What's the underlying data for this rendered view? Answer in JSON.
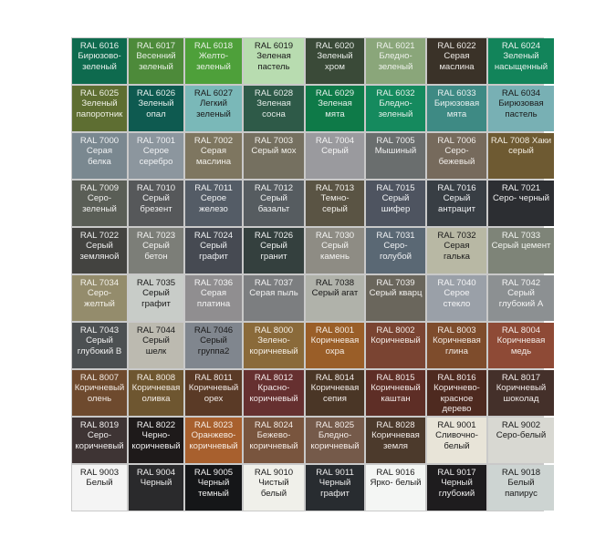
{
  "cells": [
    {
      "code": "RAL 6016",
      "name": "Бирюзово-\nзеленый",
      "color": "#0e6a4e",
      "text": "#e8f0ec"
    },
    {
      "code": "RAL 6017",
      "name": "Весенний\nзеленый",
      "color": "#4d8a3a",
      "text": "#e8f0e4"
    },
    {
      "code": "RAL 6018",
      "name": "Желто-\nзеленый",
      "color": "#4ea03a",
      "text": "#e8f0e4"
    },
    {
      "code": "RAL 6019",
      "name": "Зеленая\nпастель",
      "color": "#b8dcb0",
      "text": "#1a1a1a"
    },
    {
      "code": "RAL 6020",
      "name": "Зеленый\nхром",
      "color": "#3a4a38",
      "text": "#e8ece8"
    },
    {
      "code": "RAL 6021",
      "name": "Бледно-\nзеленый",
      "color": "#8aa67a",
      "text": "#eef2ec"
    },
    {
      "code": "RAL 6022",
      "name": "Серая\nмаслина",
      "color": "#3a3228",
      "text": "#ece8e4"
    },
    {
      "code": "RAL 6024",
      "name": "Зеленый\nнасыщенный",
      "color": "#12845a",
      "text": "#e8f0ec"
    },
    {
      "code": "RAL 6025",
      "name": "Зеленый\nпапоротник",
      "color": "#5e6e32",
      "text": "#eef0e4"
    },
    {
      "code": "RAL 6026",
      "name": "Зеленый\nопал",
      "color": "#0e5a50",
      "text": "#e4eeec"
    },
    {
      "code": "RAL 6027",
      "name": "Легкий\nзеленый",
      "color": "#7ab8b8",
      "text": "#1a1a1a"
    },
    {
      "code": "RAL 6028",
      "name": "Зеленая\nсосна",
      "color": "#2e5a48",
      "text": "#e4ece8"
    },
    {
      "code": "RAL 6029",
      "name": "Зеленая\nмята",
      "color": "#0e7a48",
      "text": "#e4f0ea"
    },
    {
      "code": "RAL 6032",
      "name": "Бледно-\nзеленый",
      "color": "#158a5e",
      "text": "#e4f0ea"
    },
    {
      "code": "RAL 6033",
      "name": "Бирюзовая\nмята",
      "color": "#3e8a84",
      "text": "#e8f0f0"
    },
    {
      "code": "RAL 6034",
      "name": "Бирюзовая\nпастель",
      "color": "#78b0b4",
      "text": "#1a1a1a"
    },
    {
      "code": "RAL 7000",
      "name": "Серая\nбелка",
      "color": "#7a8890",
      "text": "#f0f2f4"
    },
    {
      "code": "RAL 7001",
      "name": "Серое\nсеребро",
      "color": "#8c969e",
      "text": "#f0f2f4"
    },
    {
      "code": "RAL 7002",
      "name": "Серая\nмаслина",
      "color": "#7e7660",
      "text": "#f2f0ea"
    },
    {
      "code": "RAL 7003",
      "name": "Серый мох",
      "color": "#757060",
      "text": "#f2f0ea"
    },
    {
      "code": "RAL 7004",
      "name": "Серый",
      "color": "#9a9a9e",
      "text": "#f4f4f4"
    },
    {
      "code": "RAL 7005",
      "name": "Мышиный",
      "color": "#6a6e6e",
      "text": "#f0f0f0"
    },
    {
      "code": "RAL 7006",
      "name": "Серо-\nбежевый",
      "color": "#766a5c",
      "text": "#f2eeea"
    },
    {
      "code": "RAL 7008 Хаки",
      "name": "серый",
      "color": "#6e5a32",
      "text": "#f2ece0"
    },
    {
      "code": "RAL 7009",
      "name": "Серо-\nзеленый",
      "color": "#5a5e56",
      "text": "#f0f0ee"
    },
    {
      "code": "RAL 7010",
      "name": "Серый\nбрезент",
      "color": "#56585a",
      "text": "#f0f0f0"
    },
    {
      "code": "RAL 7011",
      "name": "Серое\nжелезо",
      "color": "#545c66",
      "text": "#f0f2f4"
    },
    {
      "code": "RAL 7012",
      "name": "Серый\nбазальт",
      "color": "#565c60",
      "text": "#f0f2f2"
    },
    {
      "code": "RAL 7013",
      "name": "Темно-\nсерый",
      "color": "#5a5444",
      "text": "#f2f0ea"
    },
    {
      "code": "RAL 7015",
      "name": "Серый\nшифер",
      "color": "#4e5460",
      "text": "#f0f2f4"
    },
    {
      "code": "RAL 7016",
      "name": "Серый\nантрацит",
      "color": "#383e44",
      "text": "#eef0f2"
    },
    {
      "code": "RAL 7021",
      "name": "Серо- черный",
      "color": "#2c2e32",
      "text": "#eeeeee"
    },
    {
      "code": "RAL 7022",
      "name": "Серый\nземляной",
      "color": "#434340",
      "text": "#eeeeee"
    },
    {
      "code": "RAL 7023",
      "name": "Серый\nбетон",
      "color": "#7c7e78",
      "text": "#f2f2f0"
    },
    {
      "code": "RAL 7024",
      "name": "Серый\nграфит",
      "color": "#464a52",
      "text": "#eef0f2"
    },
    {
      "code": "RAL 7026",
      "name": "Серый\nгранит",
      "color": "#34403e",
      "text": "#eef0f0"
    },
    {
      "code": "RAL 7030",
      "name": "Серый\nкамень",
      "color": "#8e8c84",
      "text": "#f4f4f2"
    },
    {
      "code": "RAL 7031",
      "name": "Серо-\nголубой",
      "color": "#5a6874",
      "text": "#f0f2f4"
    },
    {
      "code": "RAL 7032",
      "name": "Серая\nгалька",
      "color": "#b8b8a4",
      "text": "#1a1a1a"
    },
    {
      "code": "RAL 7033",
      "name": "Серый цемент",
      "color": "#7e8478",
      "text": "#f2f4f0"
    },
    {
      "code": "RAL 7034",
      "name": "Серо-\nжелтый",
      "color": "#948c6c",
      "text": "#f4f2ea"
    },
    {
      "code": "RAL 7035",
      "name": "Серый\nграфит",
      "color": "#c8ccc8",
      "text": "#1a1a1a"
    },
    {
      "code": "RAL 7036",
      "name": "Серая\nплатина",
      "color": "#908e90",
      "text": "#f4f4f4"
    },
    {
      "code": "RAL 7037",
      "name": "Серая пыль",
      "color": "#7c7e80",
      "text": "#f2f2f2"
    },
    {
      "code": "RAL 7038",
      "name": "Серый агат",
      "color": "#b0b2aa",
      "text": "#1a1a1a"
    },
    {
      "code": "RAL 7039",
      "name": "Серый кварц",
      "color": "#6a665c",
      "text": "#f2f0ee"
    },
    {
      "code": "RAL 7040",
      "name": "Серое\nстекло",
      "color": "#9aa0a8",
      "text": "#f4f4f6"
    },
    {
      "code": "RAL 7042",
      "name": "Серый\nглубокий А",
      "color": "#8c9092",
      "text": "#f4f4f4"
    },
    {
      "code": "RAL 7043",
      "name": "Серый\nглубокий В",
      "color": "#4c5052",
      "text": "#f0f0f0"
    },
    {
      "code": "RAL 7044",
      "name": "Серый\nшелк",
      "color": "#bcbab0",
      "text": "#1a1a1a"
    },
    {
      "code": "RAL 7046",
      "name": "Серый\nгруппа2",
      "color": "#80868e",
      "text": "#1a1a1a"
    },
    {
      "code": "RAL 8000",
      "name": "Зелено-\nкоричневый",
      "color": "#8a6a3a",
      "text": "#f4eee4"
    },
    {
      "code": "RAL 8001",
      "name": "Коричневая\nохра",
      "color": "#9a5e28",
      "text": "#f4ece4"
    },
    {
      "code": "RAL 8002",
      "name": "Коричневый",
      "color": "#7a4432",
      "text": "#f2eae6"
    },
    {
      "code": "RAL 8003",
      "name": "Коричневая\nглина",
      "color": "#7e4c2c",
      "text": "#f2eae4"
    },
    {
      "code": "RAL 8004",
      "name": "Коричневая\nмедь",
      "color": "#8e4a36",
      "text": "#f2eae6"
    },
    {
      "code": "RAL 8007",
      "name": "Коричневый\nолень",
      "color": "#6e4a2e",
      "text": "#f2eae4"
    },
    {
      "code": "RAL 8008",
      "name": "Коричневая\nоливка",
      "color": "#6e5630",
      "text": "#f2ece4"
    },
    {
      "code": "RAL 8011",
      "name": "Коричневый\nорех",
      "color": "#5a3a26",
      "text": "#f0e8e4"
    },
    {
      "code": "RAL 8012",
      "name": "Красно-\nкоричневый",
      "color": "#663030",
      "text": "#f2e8e8"
    },
    {
      "code": "RAL 8014",
      "name": "Коричневая\nсепия",
      "color": "#4a3626",
      "text": "#f0eae6"
    },
    {
      "code": "RAL 8015",
      "name": "Коричневый\nкаштан",
      "color": "#5e2e26",
      "text": "#f2e8e6"
    },
    {
      "code": "RAL 8016",
      "name": "Коричнево-\nкрасное\nдерево",
      "color": "#4e2a20",
      "text": "#f0e8e6"
    },
    {
      "code": "RAL 8017",
      "name": "Коричневый\nшоколад",
      "color": "#44302a",
      "text": "#f0eae8"
    },
    {
      "code": "RAL 8019",
      "name": "Серо-\nкоричневый",
      "color": "#3e3434",
      "text": "#f0eeee"
    },
    {
      "code": "RAL 8022",
      "name": "Черно-\nкоричневый",
      "color": "#1e1a1a",
      "text": "#eeeeee"
    },
    {
      "code": "RAL 8023",
      "name": "Оранжево-\nкоричневый",
      "color": "#a8602e",
      "text": "#f6ece4"
    },
    {
      "code": "RAL 8024",
      "name": "Бежево-\nкоричневый",
      "color": "#79553e",
      "text": "#f4ece6"
    },
    {
      "code": "RAL 8025",
      "name": "Бледно-\nкоричневый",
      "color": "#755a4a",
      "text": "#f4ece8"
    },
    {
      "code": "RAL 8028",
      "name": "Коричневая\nземля",
      "color": "#4c3a2c",
      "text": "#f0eae6"
    },
    {
      "code": "RAL 9001",
      "name": "Сливочно-\nбелый",
      "color": "#e8e4d8",
      "text": "#1a1a1a"
    },
    {
      "code": "RAL 9002",
      "name": "Серо-белый",
      "color": "#d8d8d2",
      "text": "#1a1a1a"
    },
    {
      "code": "RAL 9003",
      "name": "Белый",
      "color": "#f4f4f4",
      "text": "#1a1a1a"
    },
    {
      "code": "RAL 9004",
      "name": "Черный",
      "color": "#2a2a2c",
      "text": "#eeeeee"
    },
    {
      "code": "RAL 9005",
      "name": "Черный\nтемный",
      "color": "#151618",
      "text": "#eeeeee"
    },
    {
      "code": "RAL 9010",
      "name": "Чистый\nбелый",
      "color": "#f0f0ea",
      "text": "#1a1a1a"
    },
    {
      "code": "RAL 9011",
      "name": "Черный\nграфит",
      "color": "#282c30",
      "text": "#eeeeee"
    },
    {
      "code": "RAL 9016",
      "name": "Ярко- белый",
      "color": "#f4f6f4",
      "text": "#1a1a1a"
    },
    {
      "code": "RAL 9017",
      "name": "Черный\nглубокий",
      "color": "#1e1c1e",
      "text": "#eeeeee"
    },
    {
      "code": "RAL 9018",
      "name": "Белый\nпапирус",
      "color": "#cdd4d2",
      "text": "#1a1a1a"
    }
  ]
}
